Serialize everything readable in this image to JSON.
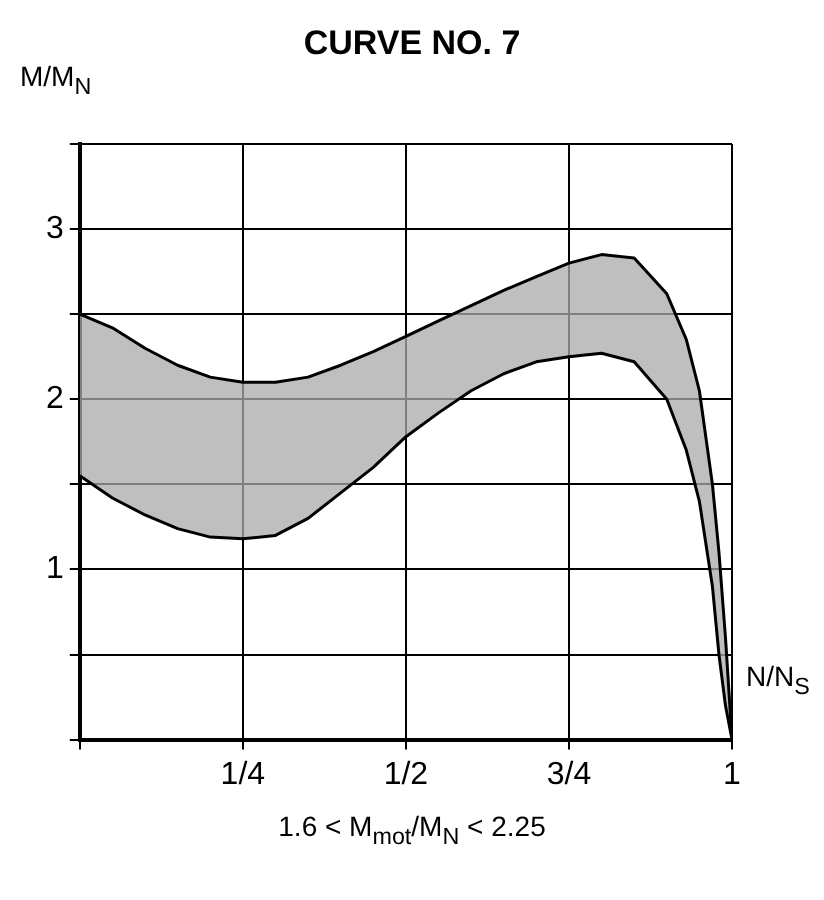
{
  "chart_data": {
    "type": "line",
    "title": "CURVE NO. 7",
    "xlabel": "N/N$_{S}$",
    "ylabel": "M/M$_{N}$",
    "annotations": [
      "1.6 < M$_{mot}$/M$_{N}$ < 2.25"
    ],
    "x": [
      0,
      0.05,
      0.1,
      0.15,
      0.2,
      0.25,
      0.3,
      0.35,
      0.4,
      0.45,
      0.5,
      0.55,
      0.6,
      0.65,
      0.7,
      0.75,
      0.8,
      0.85,
      0.9,
      0.93,
      0.95,
      0.97,
      0.98,
      0.99,
      1
    ],
    "series": [
      {
        "color": "#000000",
        "values": [
          2.5,
          2.42,
          2.3,
          2.2,
          2.13,
          2.1,
          2.1,
          2.13,
          2.2,
          2.28,
          2.37,
          2.46,
          2.55,
          2.64,
          2.72,
          2.8,
          2.85,
          2.83,
          2.62,
          2.35,
          2.05,
          1.5,
          1.1,
          0.6,
          0
        ]
      },
      {
        "color": "#000000",
        "values": [
          1.55,
          1.42,
          1.32,
          1.24,
          1.19,
          1.18,
          1.2,
          1.3,
          1.45,
          1.6,
          1.78,
          1.92,
          2.05,
          2.15,
          2.22,
          2.25,
          2.27,
          2.22,
          2.0,
          1.7,
          1.4,
          0.9,
          0.5,
          0.2,
          0
        ]
      }
    ],
    "xlim": [
      0,
      1
    ],
    "ylim": [
      0,
      3.5
    ],
    "xticks": [
      {
        "value": 0,
        "label": null
      },
      {
        "value": 0.25,
        "label": "1/4"
      },
      {
        "value": 0.5,
        "label": "1/2"
      },
      {
        "value": 0.75,
        "label": "3/4"
      },
      1
    ],
    "yticks": [
      {
        "value": 0,
        "label": null
      },
      {
        "value": 0.5,
        "label": null
      },
      1,
      {
        "value": 1.5,
        "label": null
      },
      2,
      {
        "value": 2.5,
        "label": null
      },
      3,
      {
        "value": 3.5,
        "label": null
      }
    ],
    "grid": true,
    "legend": false,
    "marker": "none",
    "line_style": "solid"
  }
}
